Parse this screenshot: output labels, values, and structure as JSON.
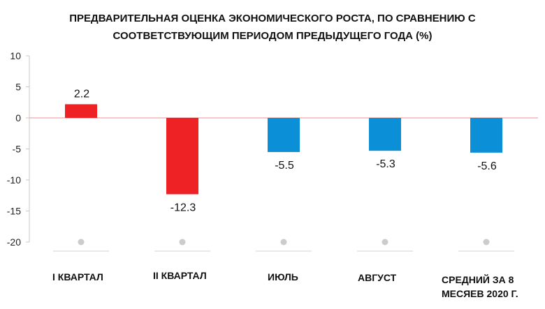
{
  "chart_data": {
    "type": "bar",
    "title_lines": [
      "ПРЕДВАРИТЕЛЬНАЯ ОЦЕНКА ЭКОНОМИЧЕСКОГО РОСТА, ПО СРАВНЕНИЮ С",
      "СООТВЕТСТВУЮЩИМ ПЕРИОДОМ ПРЕДЫДУЩЕГО ГОДА (%)"
    ],
    "categories": [
      "I КВАРТАЛ",
      "II КВАРТАЛ",
      "ИЮЛЬ",
      "АВГУСТ",
      "СРЕДНИЙ ЗА 8 МЕСЯЕВ 2020 Г."
    ],
    "category_label_lines": [
      [
        "I КВАРТАЛ"
      ],
      [
        "II КВАРТАЛ"
      ],
      [
        "ИЮЛЬ"
      ],
      [
        "АВГУСТ"
      ],
      [
        "СРЕДНИЙ ЗА 8",
        "МЕСЯЕВ 2020 Г."
      ]
    ],
    "values": [
      2.2,
      -12.3,
      -5.5,
      -5.3,
      -5.6
    ],
    "value_labels": [
      "2.2",
      "-12.3",
      "-5.5",
      "-5.3",
      "-5.6"
    ],
    "bar_colors": [
      "#ee2125",
      "#ee2125",
      "#0b8fd6",
      "#0b8fd6",
      "#0b8fd6"
    ],
    "zero_line_color": "#f3a6a8",
    "ylim": [
      -20,
      10
    ],
    "yticks": [
      10,
      5,
      0,
      -5,
      -10,
      -15,
      -20
    ],
    "ytick_labels": [
      "10",
      "5",
      "0",
      "-5",
      "-10",
      "-15",
      "-20"
    ],
    "xlabel": "",
    "ylabel": "",
    "grid": false,
    "legend": "none"
  }
}
